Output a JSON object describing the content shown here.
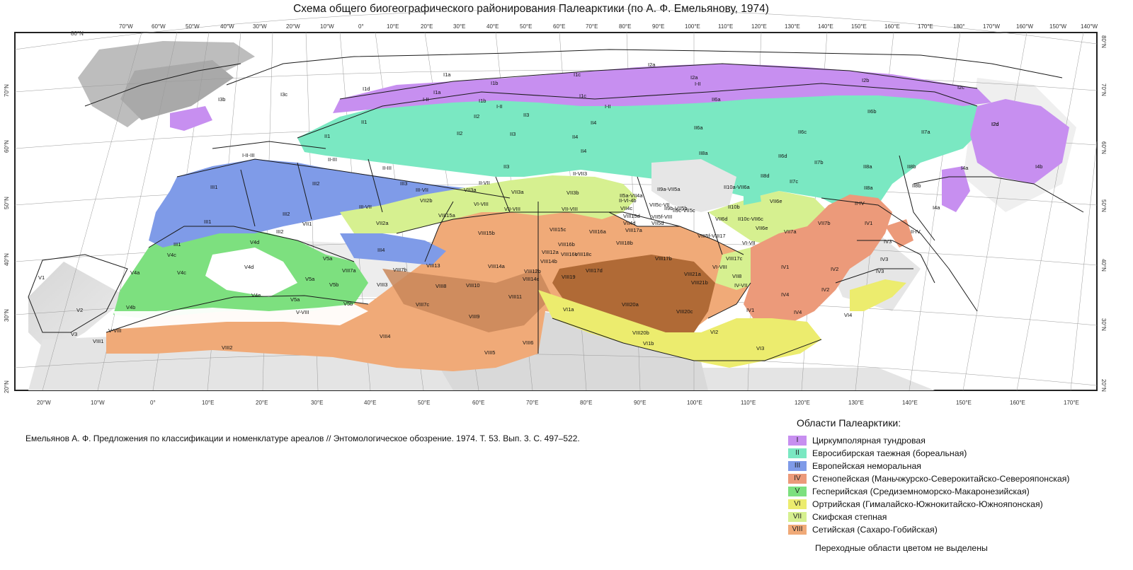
{
  "title": "Схема общего биогеографического районирования Палеарктики (по А. Ф. Емельянову, 1974)",
  "citation": "Емельянов А. Ф. Предложения по классификации и номенклатуре ареалов // Энтомологическое обозрение. 1974. Т. 53. Вып. 3. С. 497–522.",
  "top_longitudes": [
    "70°W",
    "60°W",
    "50°W",
    "40°W",
    "30°W",
    "20°W",
    "10°W",
    "0°",
    "10°E",
    "20°E",
    "30°E",
    "40°E",
    "50°E",
    "60°E",
    "70°E",
    "80°E",
    "90°E",
    "100°E",
    "110°E",
    "120°E",
    "130°E",
    "140°E",
    "150°E",
    "160°E",
    "170°E",
    "180°",
    "170°W",
    "160°W",
    "150°W",
    "140°W"
  ],
  "bottom_longitudes": [
    "20°W",
    "10°W",
    "0°",
    "10°E",
    "20°E",
    "30°E",
    "40°E",
    "50°E",
    "60°E",
    "70°E",
    "80°E",
    "90°E",
    "100°E",
    "110°E",
    "120°E",
    "130°E",
    "140°E",
    "150°E",
    "160°E",
    "170°E"
  ],
  "latitudes": [
    "80°N",
    "70°N",
    "60°N",
    "50°N",
    "40°N",
    "30°N",
    "20°N"
  ],
  "top_left_lat": "80°N",
  "legend": {
    "title": "Области Палеарктики:",
    "items": [
      {
        "numeral": "I",
        "label": "Циркумполярная тундровая",
        "color": "#c78ff0"
      },
      {
        "numeral": "II",
        "label": "Евросибирская таежная (бореальная)",
        "color": "#7ae8c2"
      },
      {
        "numeral": "III",
        "label": "Европейская неморальная",
        "color": "#7f9be8"
      },
      {
        "numeral": "IV",
        "label": "Стенопейская (Маньчжурско-Северокитайско-Северояпонская)",
        "color": "#ec9a7a"
      },
      {
        "numeral": "V",
        "label": "Гесперийская (Средиземноморско-Макаронезийская)",
        "color": "#7de07f"
      },
      {
        "numeral": "VI",
        "label": "Ортрийская (Гималайско-Южнокитайско-Южнояпонская)",
        "color": "#ecec6e"
      },
      {
        "numeral": "VII",
        "label": "Скифская степная",
        "color": "#d6f090"
      },
      {
        "numeral": "VIII",
        "label": "Сетийская (Сахаро-Гобийская)",
        "color": "#f0aa78"
      }
    ],
    "note": "Переходные области цветом не выделены"
  },
  "regions": [
    {
      "code": "I2a"
    },
    {
      "code": "I2a"
    },
    {
      "code": "I2b"
    },
    {
      "code": "I2c"
    },
    {
      "code": "I2d"
    },
    {
      "code": "I1a"
    },
    {
      "code": "I1a"
    },
    {
      "code": "I1b"
    },
    {
      "code": "I1b"
    },
    {
      "code": "I1c"
    },
    {
      "code": "I1c"
    },
    {
      "code": "I1d"
    },
    {
      "code": "I3b"
    },
    {
      "code": "I3c"
    },
    {
      "code": "I-II"
    },
    {
      "code": "I-II"
    },
    {
      "code": "I-II"
    },
    {
      "code": "I-II"
    },
    {
      "code": "II1"
    },
    {
      "code": "II1"
    },
    {
      "code": "II2"
    },
    {
      "code": "II2"
    },
    {
      "code": "II3"
    },
    {
      "code": "II3"
    },
    {
      "code": "II3"
    },
    {
      "code": "II4"
    },
    {
      "code": "II4"
    },
    {
      "code": "II4"
    },
    {
      "code": "II6a"
    },
    {
      "code": "II6a"
    },
    {
      "code": "II8a"
    },
    {
      "code": "II6b"
    },
    {
      "code": "II6c"
    },
    {
      "code": "II6d"
    },
    {
      "code": "II7a"
    },
    {
      "code": "II7b"
    },
    {
      "code": "II7c"
    },
    {
      "code": "II8d"
    },
    {
      "code": "II8a"
    },
    {
      "code": "II8a"
    },
    {
      "code": "II8b"
    },
    {
      "code": "II8b"
    },
    {
      "code": "I2d"
    },
    {
      "code": "I4a"
    },
    {
      "code": "I4b"
    },
    {
      "code": "I4a"
    },
    {
      "code": "I-II-III"
    },
    {
      "code": "II-III"
    },
    {
      "code": "II-III"
    },
    {
      "code": "II-VII3"
    },
    {
      "code": "III1"
    },
    {
      "code": "III1"
    },
    {
      "code": "III1"
    },
    {
      "code": "III2"
    },
    {
      "code": "III2"
    },
    {
      "code": "III2"
    },
    {
      "code": "III3"
    },
    {
      "code": "III4"
    },
    {
      "code": "III-VII"
    },
    {
      "code": "III-VII"
    },
    {
      "code": "II-VII"
    },
    {
      "code": "VII3a"
    },
    {
      "code": "VII3a"
    },
    {
      "code": "VII3b"
    },
    {
      "code": "VII2a"
    },
    {
      "code": "VII2b"
    },
    {
      "code": "VII1"
    },
    {
      "code": "VI-VIII"
    },
    {
      "code": "VII-VIII"
    },
    {
      "code": "VII-VIII"
    },
    {
      "code": "II5a-VII4a"
    },
    {
      "code": "II9a-VII5a"
    },
    {
      "code": "II-VI-4b"
    },
    {
      "code": "II9b-VII5b"
    },
    {
      "code": "II10a-VII6a"
    },
    {
      "code": "II10b"
    },
    {
      "code": "VII5c-VII"
    },
    {
      "code": "VII5f-VIII"
    },
    {
      "code": "II9c-VII5c"
    },
    {
      "code": "VII6d"
    },
    {
      "code": "II10c-VII6c"
    },
    {
      "code": "VII6e"
    },
    {
      "code": "VII6e"
    },
    {
      "code": "VII4c"
    },
    {
      "code": "VIII15d"
    },
    {
      "code": "VII4d"
    },
    {
      "code": "VII5d"
    },
    {
      "code": "VII7a"
    },
    {
      "code": "VII7b"
    },
    {
      "code": "VIII5f-VIII17"
    },
    {
      "code": "VI-VII"
    },
    {
      "code": "VI-VIII"
    },
    {
      "code": "VII8"
    },
    {
      "code": "IV-VII"
    },
    {
      "code": "II-IV"
    },
    {
      "code": "II-IV"
    },
    {
      "code": "IV1"
    },
    {
      "code": "IV1"
    },
    {
      "code": "IV1"
    },
    {
      "code": "IV2"
    },
    {
      "code": "IV2"
    },
    {
      "code": "IV3"
    },
    {
      "code": "IV3"
    },
    {
      "code": "IV3"
    },
    {
      "code": "IV4"
    },
    {
      "code": "IV4"
    },
    {
      "code": "VI4"
    },
    {
      "code": "VI1a"
    },
    {
      "code": "VI1b"
    },
    {
      "code": "VI2"
    },
    {
      "code": "VI3"
    },
    {
      "code": "V1"
    },
    {
      "code": "V2"
    },
    {
      "code": "V3"
    },
    {
      "code": "V4a"
    },
    {
      "code": "V4b"
    },
    {
      "code": "V4c"
    },
    {
      "code": "V4c"
    },
    {
      "code": "V4d"
    },
    {
      "code": "V4d"
    },
    {
      "code": "V4e"
    },
    {
      "code": "V5a"
    },
    {
      "code": "V5a"
    },
    {
      "code": "V5a"
    },
    {
      "code": "V5b"
    },
    {
      "code": "V5b"
    },
    {
      "code": "V-VIII"
    },
    {
      "code": "V-VIII"
    },
    {
      "code": "VIII1"
    },
    {
      "code": "VIII2"
    },
    {
      "code": "VIII3"
    },
    {
      "code": "VIII4"
    },
    {
      "code": "VIII5"
    },
    {
      "code": "VIII6"
    },
    {
      "code": "VIII7a"
    },
    {
      "code": "VIII7b"
    },
    {
      "code": "VIII7c"
    },
    {
      "code": "VIII8"
    },
    {
      "code": "VIII9"
    },
    {
      "code": "VIII10"
    },
    {
      "code": "VIII11"
    },
    {
      "code": "VIII12a"
    },
    {
      "code": "VIII12b"
    },
    {
      "code": "VIII13"
    },
    {
      "code": "VIII14a"
    },
    {
      "code": "VIII14b"
    },
    {
      "code": "VIII14c"
    },
    {
      "code": "VIII15a"
    },
    {
      "code": "VIII15b"
    },
    {
      "code": "VIII15c"
    },
    {
      "code": "VIII16a"
    },
    {
      "code": "VIII16b"
    },
    {
      "code": "VIII16c"
    },
    {
      "code": "VIII17a"
    },
    {
      "code": "VIII17b"
    },
    {
      "code": "VIII17c"
    },
    {
      "code": "VIII17d"
    },
    {
      "code": "VIII18b"
    },
    {
      "code": "VIII18c"
    },
    {
      "code": "VIII19"
    },
    {
      "code": "VIII20a"
    },
    {
      "code": "VIII20b"
    },
    {
      "code": "VIII20c"
    },
    {
      "code": "VIII21a"
    },
    {
      "code": "VIII21b"
    }
  ]
}
